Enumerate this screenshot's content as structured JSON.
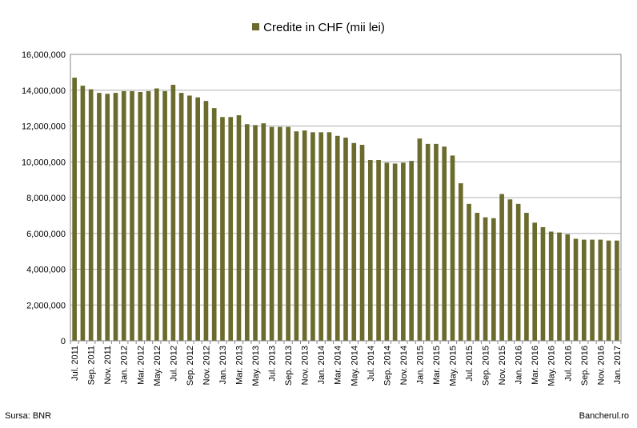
{
  "legend": {
    "label": "Credite in CHF (mii lei)",
    "color": "#6b6b2e"
  },
  "footer": {
    "source": "Sursa: BNR",
    "site": "Bancherul.ro"
  },
  "chart_data": {
    "type": "bar",
    "title": "",
    "xlabel": "",
    "ylabel": "",
    "ylim": [
      0,
      16000000
    ],
    "yticks": [
      0,
      2000000,
      4000000,
      6000000,
      8000000,
      10000000,
      12000000,
      14000000,
      16000000
    ],
    "ytick_labels": [
      "0",
      "2,000,000",
      "4,000,000",
      "6,000,000",
      "8,000,000",
      "10,000,000",
      "12,000,000",
      "14,000,000",
      "16,000,000"
    ],
    "grid": true,
    "legend_position": "top-center",
    "categories": [
      "Jul. 2011",
      "Aug. 2011",
      "Sep. 2011",
      "Oct. 2011",
      "Nov. 2011",
      "Dec. 2011",
      "Jan. 2012",
      "Feb. 2012",
      "Mar. 2012",
      "Apr. 2012",
      "May. 2012",
      "Jun. 2012",
      "Jul. 2012",
      "Aug. 2012",
      "Sep. 2012",
      "Oct. 2012",
      "Nov. 2012",
      "Dec. 2012",
      "Jan. 2013",
      "Feb. 2013",
      "Mar. 2013",
      "Apr. 2013",
      "May. 2013",
      "Jun. 2013",
      "Jul. 2013",
      "Aug. 2013",
      "Sep. 2013",
      "Oct. 2013",
      "Nov. 2013",
      "Dec. 2013",
      "Jan. 2014",
      "Feb. 2014",
      "Mar. 2014",
      "Apr. 2014",
      "May. 2014",
      "Jun. 2014",
      "Jul. 2014",
      "Aug. 2014",
      "Sep. 2014",
      "Oct. 2014",
      "Nov. 2014",
      "Dec. 2014",
      "Jan. 2015",
      "Feb. 2015",
      "Mar. 2015",
      "Apr. 2015",
      "May. 2015",
      "Jun. 2015",
      "Jul. 2015",
      "Aug. 2015",
      "Sep. 2015",
      "Oct. 2015",
      "Nov. 2015",
      "Dec. 2015",
      "Jan. 2016",
      "Feb. 2016",
      "Mar. 2016",
      "Apr. 2016",
      "May. 2016",
      "Jun. 2016",
      "Jul. 2016",
      "Aug. 2016",
      "Sep. 2016",
      "Oct. 2016",
      "Nov. 2016",
      "Dec. 2016",
      "Jan. 2017"
    ],
    "tick_label_every": 2,
    "series": [
      {
        "name": "Credite in CHF (mii lei)",
        "color": "#6b6b2e",
        "values": [
          14700000,
          14250000,
          14050000,
          13850000,
          13800000,
          13850000,
          13950000,
          13950000,
          13900000,
          13950000,
          14100000,
          13950000,
          14300000,
          13850000,
          13700000,
          13600000,
          13400000,
          13000000,
          12500000,
          12500000,
          12600000,
          12100000,
          12050000,
          12150000,
          11950000,
          11950000,
          11950000,
          11700000,
          11750000,
          11650000,
          11650000,
          11650000,
          11450000,
          11350000,
          11050000,
          10950000,
          10100000,
          10100000,
          9950000,
          9900000,
          9950000,
          10050000,
          11300000,
          11000000,
          11000000,
          10850000,
          10350000,
          8800000,
          7650000,
          7150000,
          6900000,
          6850000,
          8200000,
          7900000,
          7650000,
          7150000,
          6600000,
          6350000,
          6100000,
          6050000,
          5950000,
          5700000,
          5650000,
          5650000,
          5650000,
          5600000,
          5600000
        ]
      }
    ]
  }
}
